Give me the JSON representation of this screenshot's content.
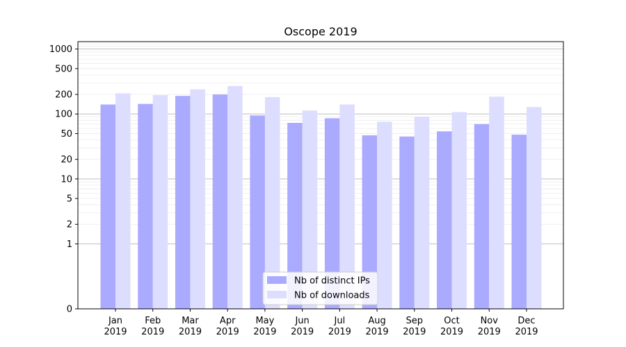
{
  "chart_data": {
    "type": "bar",
    "title": "Oscope 2019",
    "xlabel": "",
    "ylabel": "",
    "y_scale": "symlog",
    "ylim": [
      0,
      1300
    ],
    "yticks": [
      0,
      1,
      2,
      5,
      10,
      20,
      50,
      100,
      200,
      500,
      1000
    ],
    "yticklabels": [
      "0",
      "1",
      "2",
      "5",
      "10",
      "20",
      "50",
      "100",
      "200",
      "500",
      "1000"
    ],
    "grid": true,
    "legend_position": "bottom-center",
    "categories": [
      [
        "Jan",
        "2019"
      ],
      [
        "Feb",
        "2019"
      ],
      [
        "Mar",
        "2019"
      ],
      [
        "Apr",
        "2019"
      ],
      [
        "May",
        "2019"
      ],
      [
        "Jun",
        "2019"
      ],
      [
        "Jul",
        "2019"
      ],
      [
        "Aug",
        "2019"
      ],
      [
        "Sep",
        "2019"
      ],
      [
        "Oct",
        "2019"
      ],
      [
        "Nov",
        "2019"
      ],
      [
        "Dec",
        "2019"
      ]
    ],
    "series": [
      {
        "name": "Nb of distinct IPs",
        "color": "#aaaaff",
        "values": [
          140,
          143,
          190,
          200,
          95,
          73,
          86,
          47,
          45,
          54,
          70,
          48
        ]
      },
      {
        "name": "Nb of downloads",
        "color": "#ddddff",
        "values": [
          208,
          195,
          240,
          270,
          182,
          113,
          140,
          76,
          91,
          107,
          185,
          128
        ]
      }
    ]
  }
}
